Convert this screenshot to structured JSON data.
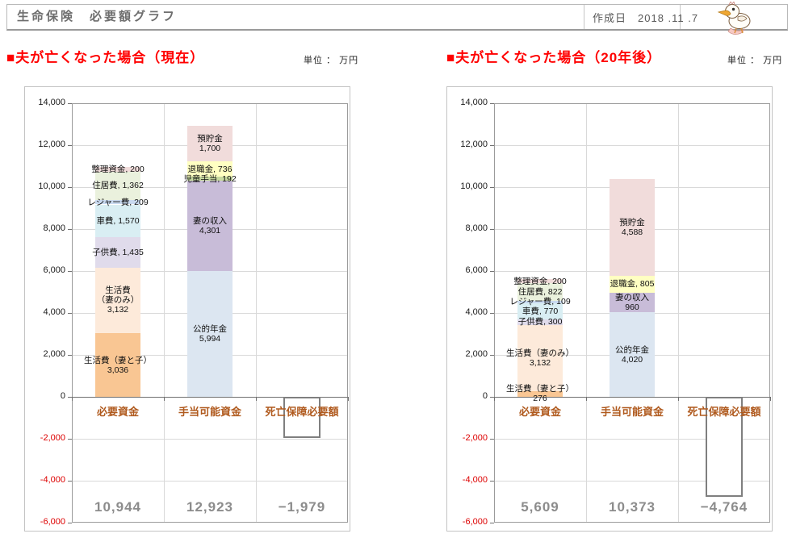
{
  "header": {
    "title": "生命保険　必要額グラフ",
    "created_label": "作成日　2018 .11 .7",
    "mascot_icon": "duckling-icon"
  },
  "sections": [
    {
      "title": "■夫が亡くなった場合（現在）",
      "unit_label": "単位 ： 万円"
    },
    {
      "title": "■夫が亡くなった場合（20年後）",
      "unit_label": "単位 ： 万円"
    }
  ],
  "colors": {
    "section_title": "#ff0000",
    "header_title": "#6e6e6e",
    "category_label": "#b05a1e",
    "total_label": "#8c8c8c",
    "axis": "#707070",
    "gridline": "#d9d9d9",
    "negative_tick": "#dd0000",
    "outline_bar_border": "#7f7f7f"
  },
  "chart_data": [
    {
      "type": "bar",
      "stacked": true,
      "title": "夫が亡くなった場合（現在）",
      "unit": "万円",
      "ylim": [
        -6000,
        14000
      ],
      "ytick_step": 2000,
      "ytick_labels": [
        "14,000",
        "12,000",
        "10,000",
        "8,000",
        "6,000",
        "4,000",
        "2,000",
        "0",
        "-2,000",
        "-4,000",
        "-6,000"
      ],
      "categories": [
        "必要資金",
        "手当可能資金",
        "死亡保障必要額"
      ],
      "segment_order": "bottom-to-top",
      "columns": [
        {
          "category": "必要資金",
          "segments": [
            {
              "name": "生活費（妻と子）",
              "value": 3036,
              "color": "#f9c693",
              "label_lines": [
                "生活費（妻と子）",
                "3,036"
              ]
            },
            {
              "name": "生活費（妻のみ）",
              "value": 3132,
              "color": "#fdeada",
              "label_lines": [
                "生活費",
                "（妻のみ）",
                "3,132"
              ]
            },
            {
              "name": "子供費",
              "value": 1435,
              "color": "#e0dbeb",
              "label_lines": [
                "子供費, 1,435"
              ]
            },
            {
              "name": "車費",
              "value": 1570,
              "color": "#d9eef3",
              "label_lines": [
                "車費, 1,570"
              ]
            },
            {
              "name": "レジャー費",
              "value": 209,
              "color": "#c9daf0",
              "label_lines": [
                "レジャー費, 209"
              ]
            },
            {
              "name": "住居費",
              "value": 1362,
              "color": "#eaf1dd",
              "label_lines": [
                "住居費, 1,362"
              ]
            },
            {
              "name": "整理資金",
              "value": 200,
              "color": "#f1dcdb",
              "label_lines": [
                "整理資金, 200"
              ]
            }
          ]
        },
        {
          "category": "手当可能資金",
          "segments": [
            {
              "name": "公的年金",
              "value": 5994,
              "color": "#dce6f1",
              "label_lines": [
                "公的年金",
                "5,994"
              ]
            },
            {
              "name": "妻の収入",
              "value": 4301,
              "color": "#c8bcd8",
              "label_lines": [
                "妻の収入",
                "4,301"
              ]
            },
            {
              "name": "児童手当",
              "value": 192,
              "color": "#c6d99f",
              "label_lines": [
                "児童手当, 192"
              ]
            },
            {
              "name": "退職金",
              "value": 736,
              "color": "#ffffc2",
              "label_lines": [
                "退職金, 736"
              ]
            },
            {
              "name": "預貯金",
              "value": 1700,
              "color": "#f1dcdb",
              "label_lines": [
                "預貯金",
                "1,700"
              ]
            }
          ]
        },
        {
          "category": "死亡保障必要額",
          "outline_bar": {
            "value": -1979
          }
        }
      ],
      "totals": [
        "10,944",
        "12,923",
        "−1,979"
      ]
    },
    {
      "type": "bar",
      "stacked": true,
      "title": "夫が亡くなった場合（20年後）",
      "unit": "万円",
      "ylim": [
        -6000,
        14000
      ],
      "ytick_step": 2000,
      "ytick_labels": [
        "14,000",
        "12,000",
        "10,000",
        "8,000",
        "6,000",
        "4,000",
        "2,000",
        "0",
        "-2,000",
        "-4,000",
        "-6,000"
      ],
      "categories": [
        "必要資金",
        "手当可能資金",
        "死亡保障必要額"
      ],
      "segment_order": "bottom-to-top",
      "columns": [
        {
          "category": "必要資金",
          "segments": [
            {
              "name": "生活費（妻と子）",
              "value": 276,
              "color": "#f9c693",
              "label_lines": [
                "生活費（妻と子）",
                "276"
              ]
            },
            {
              "name": "生活費（妻のみ）",
              "value": 3132,
              "color": "#fdeada",
              "label_lines": [
                "生活費（妻のみ）",
                "3,132"
              ]
            },
            {
              "name": "子供費",
              "value": 300,
              "color": "#e0dbeb",
              "label_lines": [
                "子供費, 300"
              ]
            },
            {
              "name": "車費",
              "value": 770,
              "color": "#d9eef3",
              "label_lines": [
                "車費, 770"
              ]
            },
            {
              "name": "レジャー費",
              "value": 109,
              "color": "#c9daf0",
              "label_lines": [
                "レジャー費, 109"
              ]
            },
            {
              "name": "住居費",
              "value": 822,
              "color": "#eaf1dd",
              "label_lines": [
                "住居費, 822"
              ]
            },
            {
              "name": "整理資金",
              "value": 200,
              "color": "#f1dcdb",
              "label_lines": [
                "整理資金, 200"
              ]
            }
          ]
        },
        {
          "category": "手当可能資金",
          "segments": [
            {
              "name": "公的年金",
              "value": 4020,
              "color": "#dce6f1",
              "label_lines": [
                "公的年金",
                "4,020"
              ]
            },
            {
              "name": "妻の収入",
              "value": 960,
              "color": "#c8bcd8",
              "label_lines": [
                "妻の収入",
                "960"
              ]
            },
            {
              "name": "退職金",
              "value": 805,
              "color": "#ffffc2",
              "label_lines": [
                "退職金, 805"
              ]
            },
            {
              "name": "預貯金",
              "value": 4588,
              "color": "#f1dcdb",
              "label_lines": [
                "預貯金",
                "4,588"
              ]
            }
          ]
        },
        {
          "category": "死亡保障必要額",
          "outline_bar": {
            "value": -4764
          }
        }
      ],
      "totals": [
        "5,609",
        "10,373",
        "−4,764"
      ]
    }
  ]
}
